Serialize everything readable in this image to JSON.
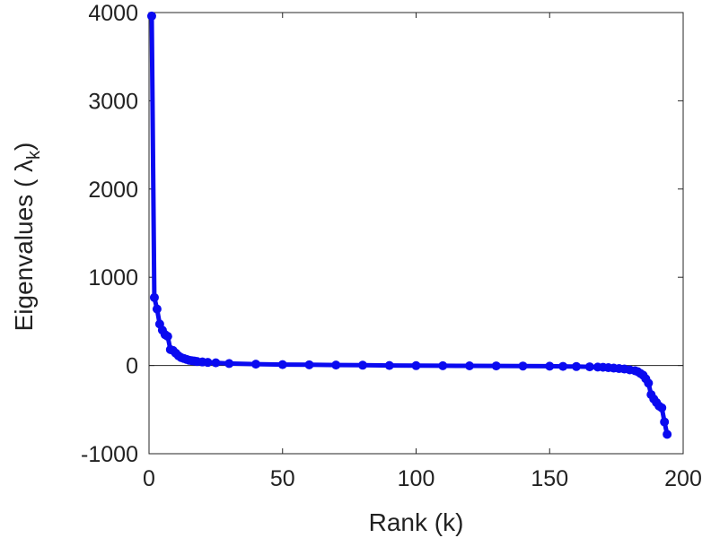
{
  "chart_data": {
    "type": "line",
    "xlabel": "Rank (k)",
    "ylabel_parts": {
      "prefix": "Eigenvalues (",
      "symbol": "λ",
      "subscript": "k",
      "suffix": ")"
    },
    "xlim": [
      0,
      200
    ],
    "ylim": [
      -1000,
      4000
    ],
    "xticks": [
      0,
      50,
      100,
      150,
      200
    ],
    "yticks": [
      -1000,
      0,
      1000,
      2000,
      3000,
      4000
    ],
    "xtick_labels": [
      "0",
      "50",
      "100",
      "150",
      "200"
    ],
    "ytick_labels": [
      "-1000",
      "0",
      "1000",
      "2000",
      "3000",
      "4000"
    ],
    "zero_line": true,
    "grid": false,
    "marker": "circle",
    "color": "#0a0af0",
    "series": [
      {
        "x": [
          1,
          2,
          3,
          4,
          5,
          6,
          7,
          8,
          9,
          10,
          11,
          12,
          13,
          14,
          15,
          16,
          17,
          18,
          20,
          22,
          25,
          30,
          40,
          50,
          60,
          70,
          80,
          90,
          100,
          110,
          120,
          130,
          140,
          150,
          155,
          160,
          165,
          168,
          170,
          172,
          174,
          176,
          178,
          180,
          182,
          183,
          184,
          185,
          186,
          187,
          188,
          189,
          190,
          191,
          192,
          193,
          194
        ],
        "y": [
          3960,
          770,
          640,
          470,
          400,
          350,
          330,
          180,
          170,
          140,
          110,
          90,
          80,
          70,
          60,
          55,
          50,
          45,
          40,
          35,
          30,
          22,
          15,
          10,
          8,
          5,
          3,
          0,
          -2,
          -3,
          -4,
          -5,
          -6,
          -8,
          -10,
          -12,
          -15,
          -18,
          -20,
          -25,
          -30,
          -35,
          -40,
          -50,
          -60,
          -70,
          -90,
          -110,
          -150,
          -200,
          -330,
          -380,
          -420,
          -460,
          -480,
          -640,
          -780
        ]
      }
    ]
  }
}
